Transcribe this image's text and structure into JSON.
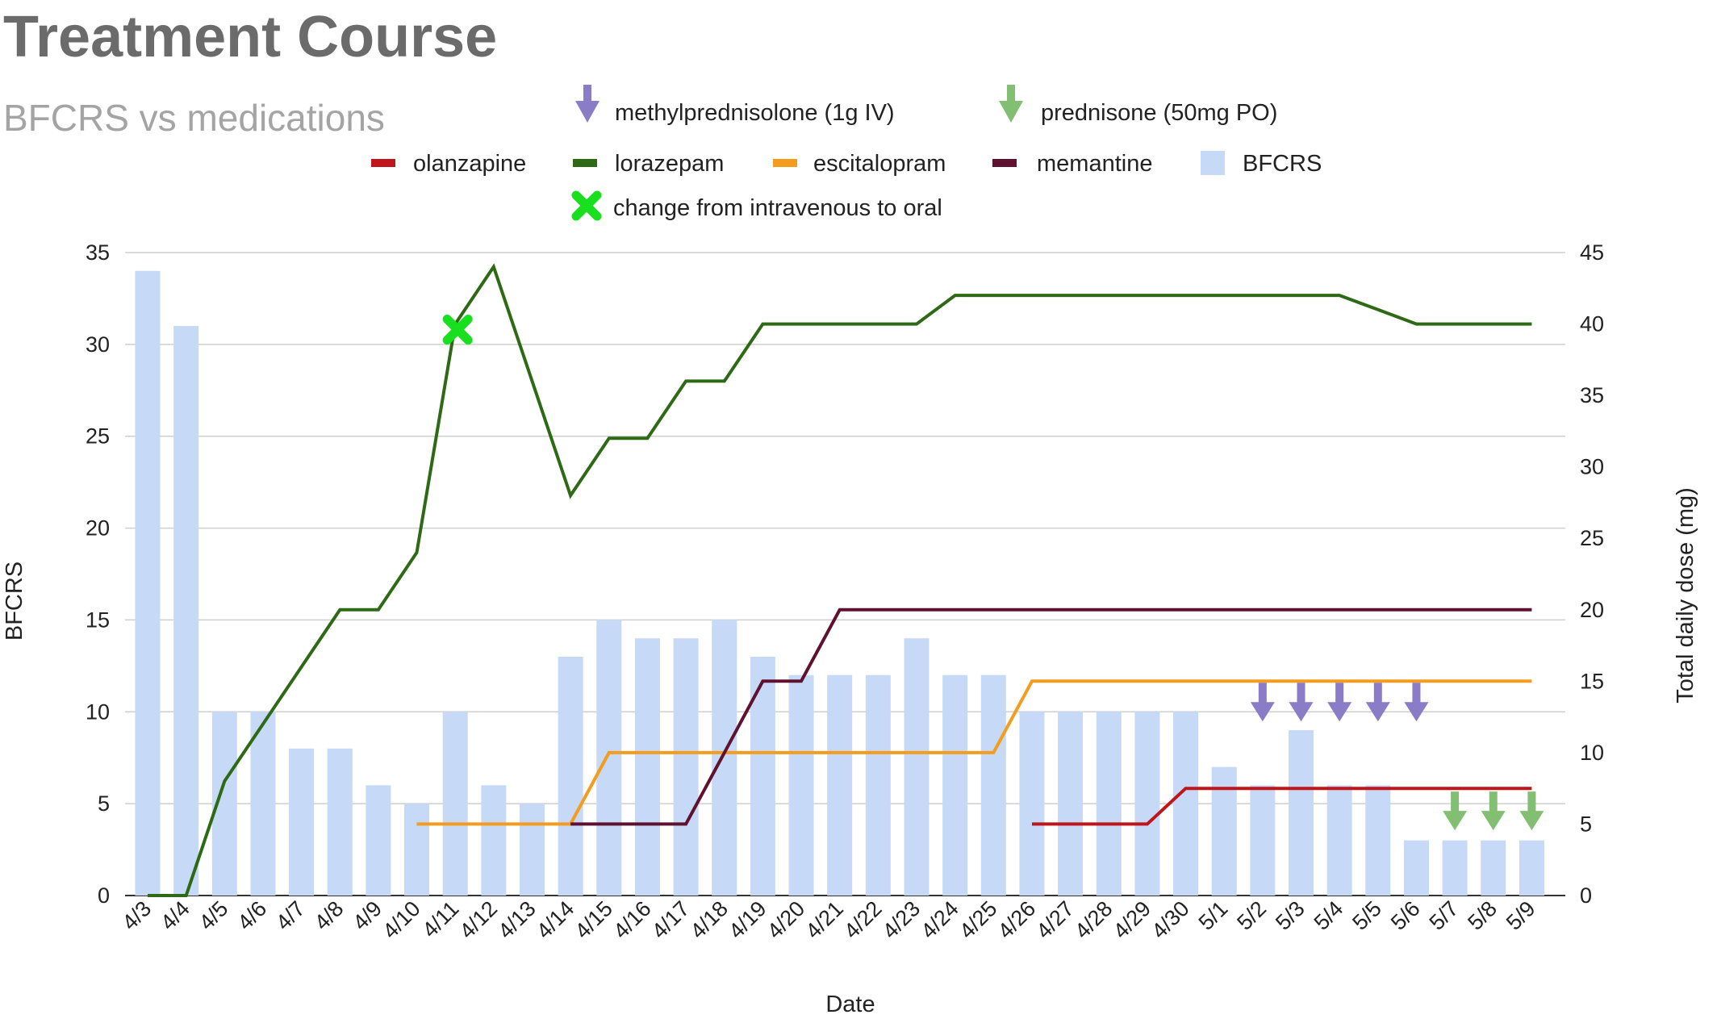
{
  "chart_data": {
    "type": "bar",
    "title": "Treatment Course",
    "subtitle": "BFCRS vs medications",
    "xlabel": "Date",
    "ylabel_left": "BFCRS",
    "ylabel_right": "Total daily dose (mg)",
    "ylim_left": [
      0,
      35
    ],
    "ylim_right": [
      0,
      45
    ],
    "yticks_left": [
      0,
      5,
      10,
      15,
      20,
      25,
      30,
      35
    ],
    "yticks_right": [
      0,
      5,
      10,
      15,
      20,
      25,
      30,
      35,
      40,
      45
    ],
    "grid": true,
    "legend_position": "top",
    "categories": [
      "4/3",
      "4/4",
      "4/5",
      "4/6",
      "4/7",
      "4/8",
      "4/9",
      "4/10",
      "4/11",
      "4/12",
      "4/13",
      "4/14",
      "4/15",
      "4/16",
      "4/17",
      "4/18",
      "4/19",
      "4/20",
      "4/21",
      "4/22",
      "4/23",
      "4/24",
      "4/25",
      "4/26",
      "4/27",
      "4/28",
      "4/29",
      "4/30",
      "5/1",
      "5/2",
      "5/3",
      "5/4",
      "5/5",
      "5/6",
      "5/7",
      "5/8",
      "5/9"
    ],
    "bars": {
      "name": "BFCRS",
      "color": "#c6d9f6",
      "axis": "left",
      "values": [
        34,
        31,
        10,
        10,
        8,
        8,
        6,
        5,
        10,
        6,
        5,
        13,
        15,
        14,
        14,
        15,
        13,
        12,
        12,
        12,
        14,
        12,
        12,
        10,
        10,
        10,
        10,
        10,
        7,
        6,
        9,
        6,
        6,
        3,
        3,
        3,
        3
      ]
    },
    "series": [
      {
        "name": "olanzapine",
        "color": "#c0151b",
        "axis": "right",
        "values": [
          null,
          null,
          null,
          null,
          null,
          null,
          null,
          null,
          null,
          null,
          null,
          null,
          null,
          null,
          null,
          null,
          null,
          null,
          null,
          null,
          null,
          null,
          null,
          5,
          5,
          5,
          5,
          7.5,
          7.5,
          7.5,
          7.5,
          7.5,
          7.5,
          7.5,
          7.5,
          7.5,
          7.5
        ]
      },
      {
        "name": "lorazepam",
        "color": "#2e6a15",
        "axis": "right",
        "values": [
          0,
          0,
          8,
          12,
          16,
          20,
          20,
          24,
          40,
          44,
          36,
          28,
          32,
          32,
          36,
          36,
          40,
          40,
          40,
          40,
          40,
          42,
          42,
          42,
          42,
          42,
          42,
          42,
          42,
          42,
          42,
          42,
          41,
          40,
          40,
          40,
          40
        ]
      },
      {
        "name": "escitalopram",
        "color": "#f39c1d",
        "axis": "right",
        "values": [
          null,
          null,
          null,
          null,
          null,
          null,
          null,
          5,
          5,
          5,
          5,
          5,
          10,
          10,
          10,
          10,
          10,
          10,
          10,
          10,
          10,
          10,
          10,
          15,
          15,
          15,
          15,
          15,
          15,
          15,
          15,
          15,
          15,
          15,
          15,
          15,
          15
        ]
      },
      {
        "name": "memantine",
        "color": "#5e1230",
        "axis": "right",
        "values": [
          null,
          null,
          null,
          null,
          null,
          null,
          null,
          null,
          null,
          null,
          null,
          5,
          5,
          5,
          5,
          10,
          15,
          15,
          20,
          20,
          20,
          20,
          20,
          20,
          20,
          20,
          20,
          20,
          20,
          20,
          20,
          20,
          20,
          20,
          20,
          20,
          20
        ]
      }
    ],
    "markers": {
      "change_route": {
        "label": "change from intravenous to oral",
        "category": "4/11",
        "value_right": 40,
        "color": "#19e01f"
      },
      "methylprednisolone": {
        "label": "methylprednisolone (1g IV)",
        "categories": [
          "5/2",
          "5/3",
          "5/4",
          "5/5",
          "5/6"
        ],
        "value_left": 10,
        "color": "#8b7cc8"
      },
      "prednisone": {
        "label": "prednisone (50mg PO)",
        "categories": [
          "5/7",
          "5/8",
          "5/9"
        ],
        "value_left": 5,
        "color": "#82bf72"
      }
    }
  }
}
